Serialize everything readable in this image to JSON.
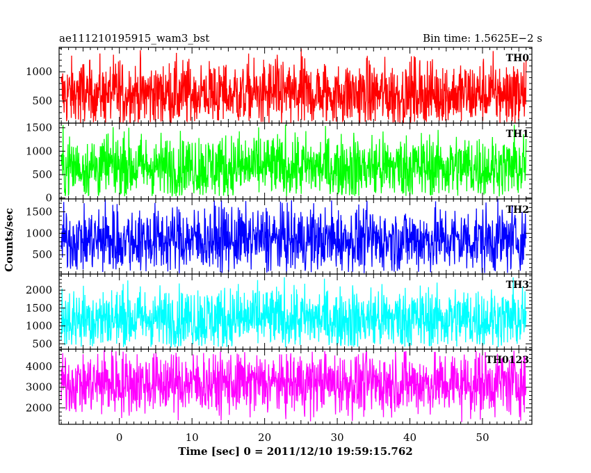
{
  "header": {
    "title": "ae111210195915_wam3_bst",
    "bin_time": "Bin time: 1.5625E−2 s"
  },
  "axes": {
    "xlabel": "Time [sec] 0 = 2011/12/10 19:59:15.762",
    "ylabel": "Counts/sec"
  },
  "chart_data": {
    "type": "line",
    "title": "ae111210195915_wam3_bst",
    "xlabel": "Time [sec] 0 = 2011/12/10 19:59:15.762",
    "ylabel": "Counts/sec",
    "xlim": [
      -8.3,
      56.8
    ],
    "x_ticks": [
      0,
      10,
      20,
      30,
      40,
      50
    ],
    "data_x_range": [
      -8.0,
      56.0
    ],
    "bin_time_s": 0.015625,
    "series": [
      {
        "name": "TH0",
        "color": "#ff0000",
        "ylim": [
          120,
          1420
        ],
        "y_ticks": [
          500,
          1000
        ],
        "mean": 620,
        "min": 120,
        "max": 1420
      },
      {
        "name": "TH1",
        "color": "#00ff00",
        "ylim": [
          -20,
          1600
        ],
        "y_ticks": [
          0,
          500,
          1000,
          1500
        ],
        "mean": 660,
        "min": 30,
        "max": 1600
      },
      {
        "name": "TH2",
        "color": "#0000ff",
        "ylim": [
          50,
          1800
        ],
        "y_ticks": [
          500,
          1000,
          1500
        ],
        "mean": 850,
        "min": 60,
        "max": 1800
      },
      {
        "name": "TH3",
        "color": "#00ffff",
        "ylim": [
          350,
          2450
        ],
        "y_ticks": [
          500,
          1000,
          1500,
          2000
        ],
        "mean": 1200,
        "min": 400,
        "max": 2400
      },
      {
        "name": "TH0123",
        "color": "#ff00ff",
        "ylim": [
          1200,
          4850
        ],
        "y_ticks": [
          2000,
          3000,
          4000
        ],
        "mean": 3200,
        "min": 1300,
        "max": 4800
      }
    ]
  }
}
